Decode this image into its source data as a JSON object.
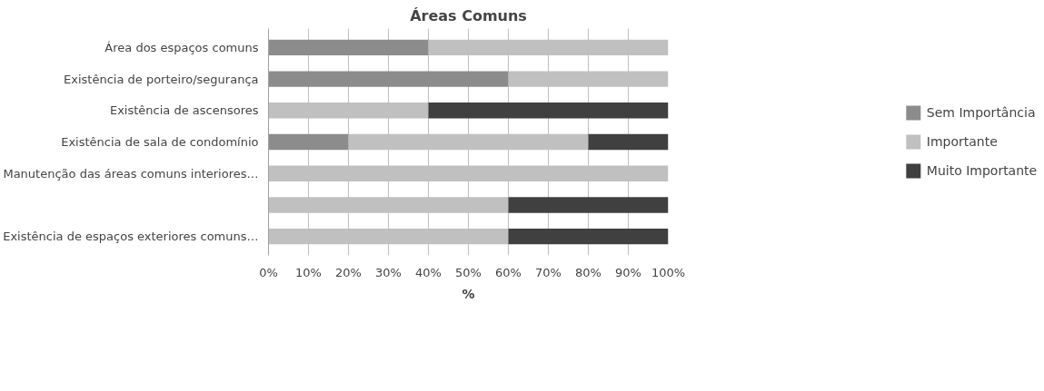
{
  "chart_data": {
    "type": "bar",
    "orientation": "horizontal",
    "stacked": true,
    "title": "Áreas Comuns",
    "xlabel": "%",
    "categories": [
      "Área dos espaços comuns",
      "Existência de porteiro/segurança",
      "Existência de ascensores",
      "Existência de sala de condomínio",
      "Manutenção das áreas comuns interiores…",
      null,
      "Existência de espaços exteriores comuns…"
    ],
    "series": [
      {
        "name": "Sem Importância",
        "color": "#8c8c8c",
        "values": [
          40,
          60,
          0,
          20,
          0,
          0,
          0
        ]
      },
      {
        "name": "Importante",
        "color": "#c0c0c0",
        "values": [
          60,
          40,
          40,
          60,
          100,
          60,
          60
        ]
      },
      {
        "name": "Muito Importante",
        "color": "#404040",
        "values": [
          0,
          0,
          60,
          20,
          0,
          40,
          40
        ]
      }
    ],
    "xlim": [
      0,
      100
    ],
    "xticks": [
      {
        "value": 0,
        "label": "0%"
      },
      {
        "value": 10,
        "label": "10%"
      },
      {
        "value": 20,
        "label": "20%"
      },
      {
        "value": 30,
        "label": "30%"
      },
      {
        "value": 40,
        "label": "40%"
      },
      {
        "value": 50,
        "label": "50%"
      },
      {
        "value": 60,
        "label": "60%"
      },
      {
        "value": 70,
        "label": "70%"
      },
      {
        "value": 80,
        "label": "80%"
      },
      {
        "value": 90,
        "label": "90%"
      },
      {
        "value": 100,
        "label": "100%"
      }
    ],
    "grid": "x",
    "legend": "right"
  }
}
